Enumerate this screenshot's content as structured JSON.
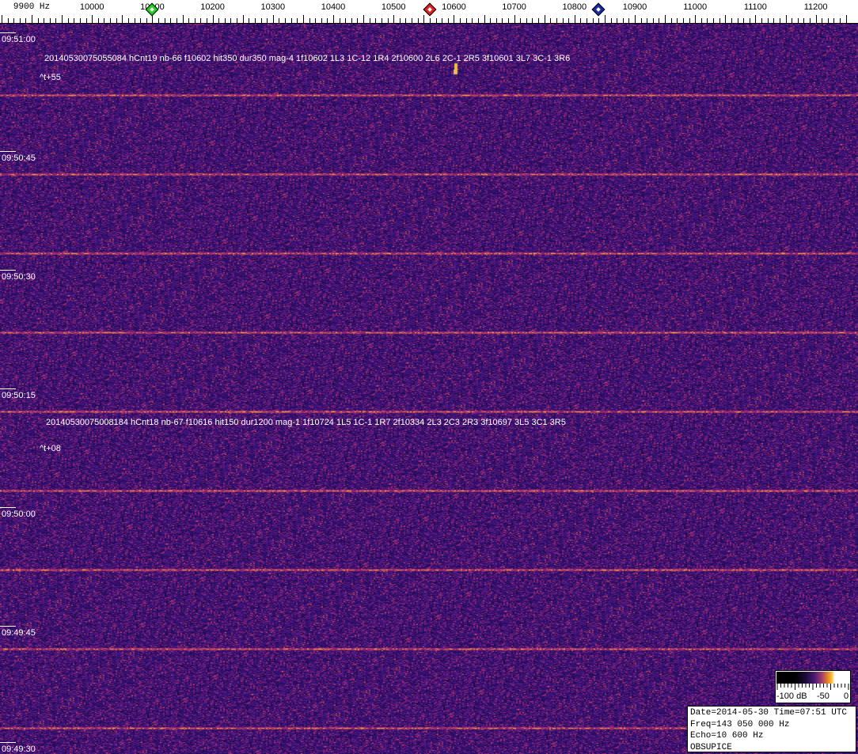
{
  "freq_axis": {
    "unit_label": "Hz",
    "labels": [
      "9900",
      "10000",
      "10100",
      "10200",
      "10300",
      "10400",
      "10500",
      "10600",
      "10700",
      "10800",
      "10900",
      "11000",
      "11100",
      "11200"
    ],
    "start_hz": 9900,
    "step_hz": 100
  },
  "markers": [
    {
      "name": "green-marker",
      "freq_hz": 10100,
      "color": "#22cc22"
    },
    {
      "name": "red-marker",
      "freq_hz": 10560,
      "color": "#dd2222"
    },
    {
      "name": "blue-marker",
      "freq_hz": 10840,
      "color": "#1a2aa0"
    }
  ],
  "time_labels": [
    "09:51:00",
    "09:50:45",
    "09:50:30",
    "09:50:15",
    "09:50:00",
    "09:49:45",
    "09:49:30"
  ],
  "detections": [
    {
      "text": "20140530075055084 hCnt19 nb-66 f10602 hit350 dur350 mag-4 1f10602 1L3 1C-12 1R4 2f10600 2L6 2C-1 2R5 3f10601 3L7 3C-1 3R6",
      "offset": "^t+55"
    },
    {
      "text": "20140530075008184 hCnt18 nb-67 f10616 hit150 dur1200 mag-1 1f10724 1L5 1C-1 1R7 2f10334 2L3 2C3 2R3 3f10697 3L5 3C1 3R5",
      "offset": "^t+08"
    }
  ],
  "colorbar": {
    "labels": [
      "-100 dB",
      "-50",
      "0"
    ]
  },
  "info": {
    "date_line": "Date=2014-05-30 Time=07:51 UTC",
    "freq_line": "Freq=143 050 000 Hz",
    "echo_line": "Echo=10 600 Hz",
    "station": "OBSUPICE"
  },
  "colors": {
    "background": "#2a1560",
    "stripe": "#f0a030"
  }
}
